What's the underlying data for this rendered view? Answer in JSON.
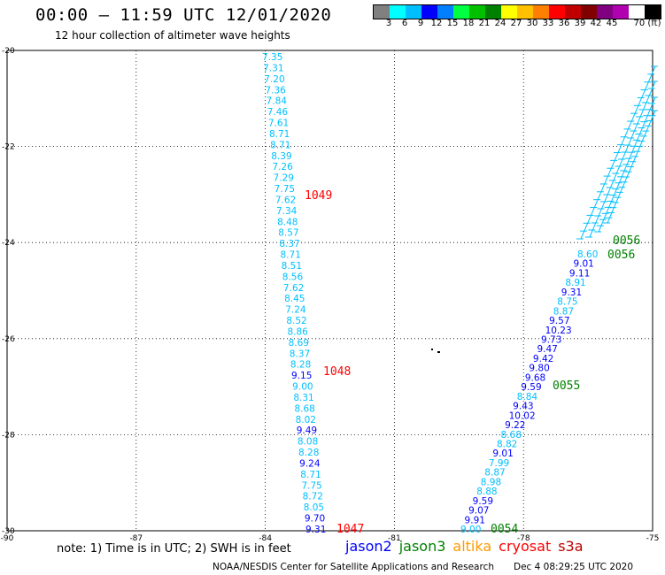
{
  "title": "00:00 – 11:59 UTC 12/01/2020",
  "subtitle": "12 hour collection of altimeter wave heights",
  "colorbar": {
    "colors": [
      "#808080",
      "#00ffff",
      "#00bfff",
      "#0000ff",
      "#0080ff",
      "#00ff40",
      "#00c000",
      "#008000",
      "#ffff00",
      "#ffc000",
      "#ff8000",
      "#ff0000",
      "#c00000",
      "#800000",
      "#800080",
      "#b000b0",
      "#ffffff",
      "#000000"
    ],
    "labels": [
      "3",
      "6",
      "9",
      "12",
      "15",
      "18",
      "21",
      "24",
      "27",
      "30",
      "33",
      "36",
      "39",
      "42",
      "45",
      "70 (ft)"
    ]
  },
  "axes": {
    "lon_ticks": [
      "-90",
      "-87",
      "-84",
      "-81",
      "-78",
      "-75"
    ],
    "lat_ticks": [
      "-20",
      "-22",
      "-24",
      "-26",
      "-28",
      "-30"
    ]
  },
  "tracks": [
    {
      "name": "track-1",
      "labels": [
        {
          "text": "1049",
          "color": "#ff0000"
        },
        {
          "text": "1048",
          "color": "#ff0000"
        },
        {
          "text": "1047",
          "color": "#ff0000"
        }
      ],
      "points": [
        {
          "v": "7.35",
          "c": "#00bfff"
        },
        {
          "v": "7.31",
          "c": "#00bfff"
        },
        {
          "v": "7.20",
          "c": "#00bfff"
        },
        {
          "v": "7.36",
          "c": "#00bfff"
        },
        {
          "v": "7.84",
          "c": "#00bfff"
        },
        {
          "v": "7.46",
          "c": "#00bfff"
        },
        {
          "v": "7.61",
          "c": "#00bfff"
        },
        {
          "v": "8.71",
          "c": "#00bfff"
        },
        {
          "v": "8.71",
          "c": "#00bfff"
        },
        {
          "v": "8.39",
          "c": "#00bfff"
        },
        {
          "v": "7.26",
          "c": "#00bfff"
        },
        {
          "v": "7.29",
          "c": "#00bfff"
        },
        {
          "v": "7.75",
          "c": "#00bfff"
        },
        {
          "v": "7.62",
          "c": "#00bfff"
        },
        {
          "v": "7.34",
          "c": "#00bfff"
        },
        {
          "v": "8.48",
          "c": "#00bfff"
        },
        {
          "v": "8.57",
          "c": "#00bfff"
        },
        {
          "v": "8.37",
          "c": "#00bfff"
        },
        {
          "v": "8.71",
          "c": "#00bfff"
        },
        {
          "v": "8.51",
          "c": "#00bfff"
        },
        {
          "v": "8.56",
          "c": "#00bfff"
        },
        {
          "v": "7.62",
          "c": "#00bfff"
        },
        {
          "v": "8.45",
          "c": "#00bfff"
        },
        {
          "v": "7.24",
          "c": "#00bfff"
        },
        {
          "v": "8.52",
          "c": "#00bfff"
        },
        {
          "v": "8.86",
          "c": "#00bfff"
        },
        {
          "v": "8.69",
          "c": "#00bfff"
        },
        {
          "v": "8.37",
          "c": "#00bfff"
        },
        {
          "v": "8.28",
          "c": "#00bfff"
        },
        {
          "v": "9.15",
          "c": "#0000ff"
        },
        {
          "v": "9.00",
          "c": "#00bfff"
        },
        {
          "v": "8.31",
          "c": "#00bfff"
        },
        {
          "v": "8.68",
          "c": "#00bfff"
        },
        {
          "v": "8.02",
          "c": "#00bfff"
        },
        {
          "v": "9.49",
          "c": "#0000ff"
        },
        {
          "v": "8.08",
          "c": "#00bfff"
        },
        {
          "v": "8.28",
          "c": "#00bfff"
        },
        {
          "v": "9.24",
          "c": "#0000ff"
        },
        {
          "v": "8.71",
          "c": "#00bfff"
        },
        {
          "v": "7.75",
          "c": "#00bfff"
        },
        {
          "v": "8.72",
          "c": "#00bfff"
        },
        {
          "v": "8.05",
          "c": "#00bfff"
        },
        {
          "v": "9.70",
          "c": "#0000ff"
        },
        {
          "v": "9.31",
          "c": "#0000ff"
        }
      ]
    },
    {
      "name": "track-2",
      "labels": [
        {
          "text": "0056",
          "color": "#008000"
        },
        {
          "text": "0056",
          "color": "#008000"
        },
        {
          "text": "0055",
          "color": "#008000"
        },
        {
          "text": "0054",
          "color": "#008000"
        }
      ],
      "points": [
        {
          "v": "8.60",
          "c": "#00bfff"
        },
        {
          "v": "9.01",
          "c": "#0000ff"
        },
        {
          "v": "9.11",
          "c": "#0000ff"
        },
        {
          "v": "8.91",
          "c": "#00bfff"
        },
        {
          "v": "9.31",
          "c": "#0000ff"
        },
        {
          "v": "8.75",
          "c": "#00bfff"
        },
        {
          "v": "8.87",
          "c": "#00bfff"
        },
        {
          "v": "9.57",
          "c": "#0000ff"
        },
        {
          "v": "10.23",
          "c": "#0000ff"
        },
        {
          "v": "9.73",
          "c": "#0000ff"
        },
        {
          "v": "9.47",
          "c": "#0000ff"
        },
        {
          "v": "9.42",
          "c": "#0000ff"
        },
        {
          "v": "9.80",
          "c": "#0000ff"
        },
        {
          "v": "9.68",
          "c": "#0000ff"
        },
        {
          "v": "9.59",
          "c": "#0000ff"
        },
        {
          "v": "8.84",
          "c": "#00bfff"
        },
        {
          "v": "9.43",
          "c": "#0000ff"
        },
        {
          "v": "10.02",
          "c": "#0000ff"
        },
        {
          "v": "9.22",
          "c": "#0000ff"
        },
        {
          "v": "8.68",
          "c": "#00bfff"
        },
        {
          "v": "8.82",
          "c": "#00bfff"
        },
        {
          "v": "9.01",
          "c": "#0000ff"
        },
        {
          "v": "7.99",
          "c": "#00bfff"
        },
        {
          "v": "8.87",
          "c": "#00bfff"
        },
        {
          "v": "8.98",
          "c": "#00bfff"
        },
        {
          "v": "8.88",
          "c": "#00bfff"
        },
        {
          "v": "9.59",
          "c": "#0000ff"
        },
        {
          "v": "9.07",
          "c": "#0000ff"
        },
        {
          "v": "9.91",
          "c": "#0000ff"
        },
        {
          "v": "9.00",
          "c": "#00bfff"
        }
      ]
    }
  ],
  "note": "note: 1) Time is in UTC; 2) SWH is in feet",
  "legend": [
    {
      "text": "jason2",
      "color": "#0000ff"
    },
    {
      "text": "jason3",
      "color": "#008000"
    },
    {
      "text": "altika",
      "color": "#ff9900"
    },
    {
      "text": "cryosat",
      "color": "#ff0000"
    },
    {
      "text": "s3a",
      "color": "#c00000"
    }
  ],
  "credit": "NOAA/NESDIS Center for Satellite Applications and Research",
  "credit_date": "Dec  4 08:29:25 UTC 2020"
}
